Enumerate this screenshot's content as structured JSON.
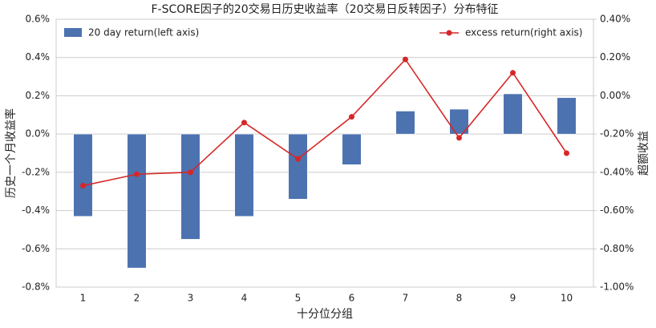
{
  "chart_data": {
    "type": "bar-line",
    "title": "F-SCORE因子的20交易日历史收益率（20交易日反转因子）分布特征",
    "x_label": "十分位分组",
    "y_label": "历史一个月收益率",
    "y2_label": "超额收益",
    "categories": [
      "1",
      "2",
      "3",
      "4",
      "5",
      "6",
      "7",
      "8",
      "9",
      "10"
    ],
    "series": [
      {
        "name": "20 day return(left axis)",
        "type": "bar",
        "color": "#4c72b0",
        "axis": "y",
        "values": [
          -0.43,
          -0.7,
          -0.55,
          -0.43,
          -0.34,
          -0.16,
          0.12,
          0.13,
          0.21,
          0.19
        ]
      },
      {
        "name": "excess return(right axis)",
        "type": "line",
        "color": "#d62728",
        "axis": "y2",
        "values": [
          -0.47,
          -0.41,
          -0.4,
          -0.14,
          -0.33,
          -0.11,
          0.19,
          -0.22,
          0.12,
          -0.3
        ]
      }
    ],
    "ylim": [
      -0.8,
      0.6
    ],
    "yticks": [
      {
        "value": -0.8,
        "label": "-0.8%"
      },
      {
        "value": -0.6,
        "label": "-0.6%"
      },
      {
        "value": -0.4,
        "label": "-0.4%"
      },
      {
        "value": -0.2,
        "label": "-0.2%"
      },
      {
        "value": 0,
        "label": "0.0%"
      },
      {
        "value": 0.2,
        "label": "0.2%"
      },
      {
        "value": 0.4,
        "label": "0.4%"
      },
      {
        "value": 0.6,
        "label": "0.6%"
      }
    ],
    "y2lim": [
      -1.0,
      0.4
    ],
    "y2ticks": [
      {
        "value": -1.0,
        "label": "-1.00%"
      },
      {
        "value": -0.8,
        "label": "-0.80%"
      },
      {
        "value": -0.6,
        "label": "-0.60%"
      },
      {
        "value": -0.4,
        "label": "-0.40%"
      },
      {
        "value": -0.2,
        "label": "-0.20%"
      },
      {
        "value": 0,
        "label": "0.00%"
      },
      {
        "value": 0.2,
        "label": "0.20%"
      },
      {
        "value": 0.4,
        "label": "0.40%"
      }
    ],
    "grid": true
  }
}
